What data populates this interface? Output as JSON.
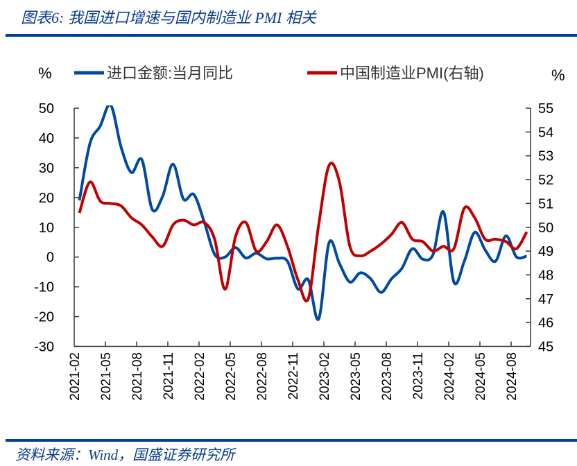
{
  "header": {
    "title": "图表6:  我国进口增速与国内制造业 PMI 相关"
  },
  "footer": {
    "source": "资料来源：Wind，国盛证券研究所"
  },
  "colors": {
    "accent": "#003f98",
    "series_blue": "#004a9f",
    "series_red": "#c00000"
  },
  "chart_data": {
    "type": "line",
    "title": "",
    "left_axis": {
      "label": "%",
      "ylim": [
        -30,
        50
      ],
      "ticks": [
        50,
        40,
        30,
        20,
        10,
        0,
        -10,
        -20,
        -30
      ]
    },
    "right_axis": {
      "label": "%",
      "ylim": [
        45,
        55
      ],
      "ticks": [
        55,
        54,
        53,
        52,
        51,
        50,
        49,
        48,
        47,
        46,
        45
      ]
    },
    "x_tick_labels": [
      "2021-02",
      "2021-05",
      "2021-08",
      "2021-11",
      "2022-02",
      "2022-05",
      "2022-08",
      "2022-11",
      "2023-02",
      "2023-05",
      "2023-08",
      "2023-11",
      "2024-02",
      "2024-05",
      "2024-08"
    ],
    "x": [
      "2021-02",
      "2021-03",
      "2021-04",
      "2021-05",
      "2021-06",
      "2021-07",
      "2021-08",
      "2021-09",
      "2021-10",
      "2021-11",
      "2021-12",
      "2022-01",
      "2022-02",
      "2022-03",
      "2022-04",
      "2022-05",
      "2022-06",
      "2022-07",
      "2022-08",
      "2022-09",
      "2022-10",
      "2022-11",
      "2022-12",
      "2023-01",
      "2023-02",
      "2023-03",
      "2023-04",
      "2023-05",
      "2023-06",
      "2023-07",
      "2023-08",
      "2023-09",
      "2023-10",
      "2023-11",
      "2023-12",
      "2024-01",
      "2024-02",
      "2024-03",
      "2024-04",
      "2024-05",
      "2024-06",
      "2024-07",
      "2024-08",
      "2024-09"
    ],
    "legend_position": "top",
    "grid": false,
    "series": [
      {
        "name": "进口金额:当月同比",
        "axis": "left",
        "color": "#004a9f",
        "values": [
          19,
          38,
          44,
          51.1,
          37,
          28.4,
          32.7,
          16,
          20.4,
          31.2,
          19.5,
          21,
          11.8,
          0.9,
          0,
          3.2,
          -0.3,
          1.3,
          -0.6,
          -0.4,
          -1.4,
          -10.7,
          -7.6,
          -20.8,
          4.8,
          -2.2,
          -8.4,
          -5.3,
          -7.3,
          -11.9,
          -7.3,
          -3.8,
          2.8,
          -0.7,
          0.9,
          15.2,
          -8.4,
          -1.4,
          8.3,
          2.4,
          -1.4,
          7.1,
          0.1,
          0.3
        ]
      },
      {
        "name": "中国制造业PMI(右轴)",
        "axis": "right",
        "color": "#c00000",
        "values": [
          50.6,
          51.9,
          51.1,
          51.0,
          50.9,
          50.4,
          50.1,
          49.6,
          49.2,
          50.1,
          50.3,
          50.1,
          50.2,
          49.5,
          47.4,
          49.6,
          50.2,
          49.0,
          49.4,
          50.1,
          49.2,
          47.8,
          47.0,
          50.1,
          52.6,
          51.9,
          49.2,
          48.8,
          49.0,
          49.3,
          49.7,
          50.2,
          49.5,
          49.4,
          49.0,
          49.2,
          49.1,
          50.8,
          50.4,
          49.5,
          49.5,
          49.4,
          49.1,
          49.8
        ]
      }
    ]
  }
}
